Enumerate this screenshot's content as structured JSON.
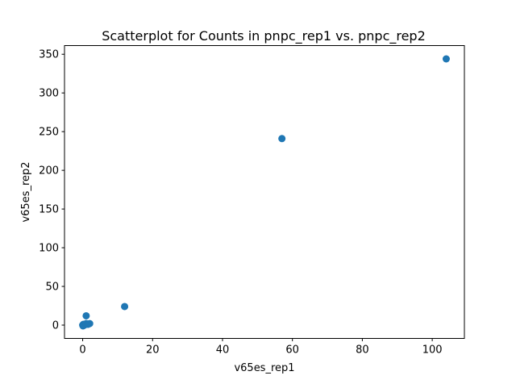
{
  "chart_data": {
    "type": "scatter",
    "title": "Scatterplot for Counts in pnpc_rep1 vs. pnpc_rep2",
    "xlabel": "v65es_rep1",
    "ylabel": "v65es_rep2",
    "xlim": [
      -5.2,
      109.2
    ],
    "ylim": [
      -17.2,
      361.2
    ],
    "xticks": [
      0,
      20,
      40,
      60,
      80,
      100
    ],
    "yticks": [
      0,
      50,
      100,
      150,
      200,
      250,
      300,
      350
    ],
    "grid": false,
    "series": [
      {
        "color": "#1f77b4",
        "points": [
          {
            "x": 0,
            "y": 0
          },
          {
            "x": 0.1,
            "y": -1
          },
          {
            "x": 0.2,
            "y": 1
          },
          {
            "x": 0.5,
            "y": 0
          },
          {
            "x": 1,
            "y": 2
          },
          {
            "x": 1,
            "y": 12
          },
          {
            "x": 1.5,
            "y": 1
          },
          {
            "x": 2,
            "y": 2
          },
          {
            "x": 12,
            "y": 24
          },
          {
            "x": 57,
            "y": 241
          },
          {
            "x": 104,
            "y": 344
          }
        ]
      }
    ]
  }
}
